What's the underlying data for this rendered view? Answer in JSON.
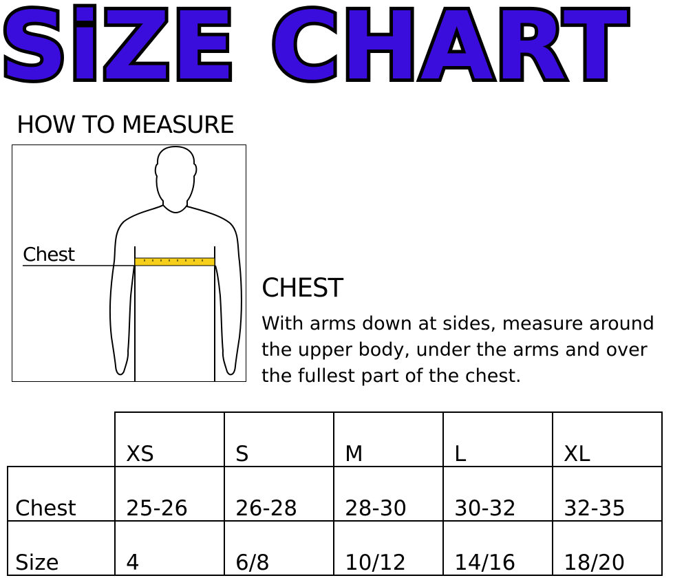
{
  "title": "SiZE CHART",
  "colors": {
    "title_fill": "#3a0ddc",
    "tape": "#f5cf1a"
  },
  "how_to_measure": "HOW TO MEASURE",
  "figure": {
    "chest_label": "Chest"
  },
  "chest": {
    "heading": "CHEST",
    "description": "With arms down at sides, measure around the upper body, under the arms and over the fullest part of the chest."
  },
  "table": {
    "headers": [
      "XS",
      "S",
      "M",
      "L",
      "XL"
    ],
    "rows": [
      {
        "label": "Chest",
        "values": [
          "25-26",
          "26-28",
          "28-30",
          "30-32",
          "32-35"
        ]
      },
      {
        "label": "Size",
        "values": [
          "4",
          "6/8",
          "10/12",
          "14/16",
          "18/20"
        ]
      }
    ]
  }
}
